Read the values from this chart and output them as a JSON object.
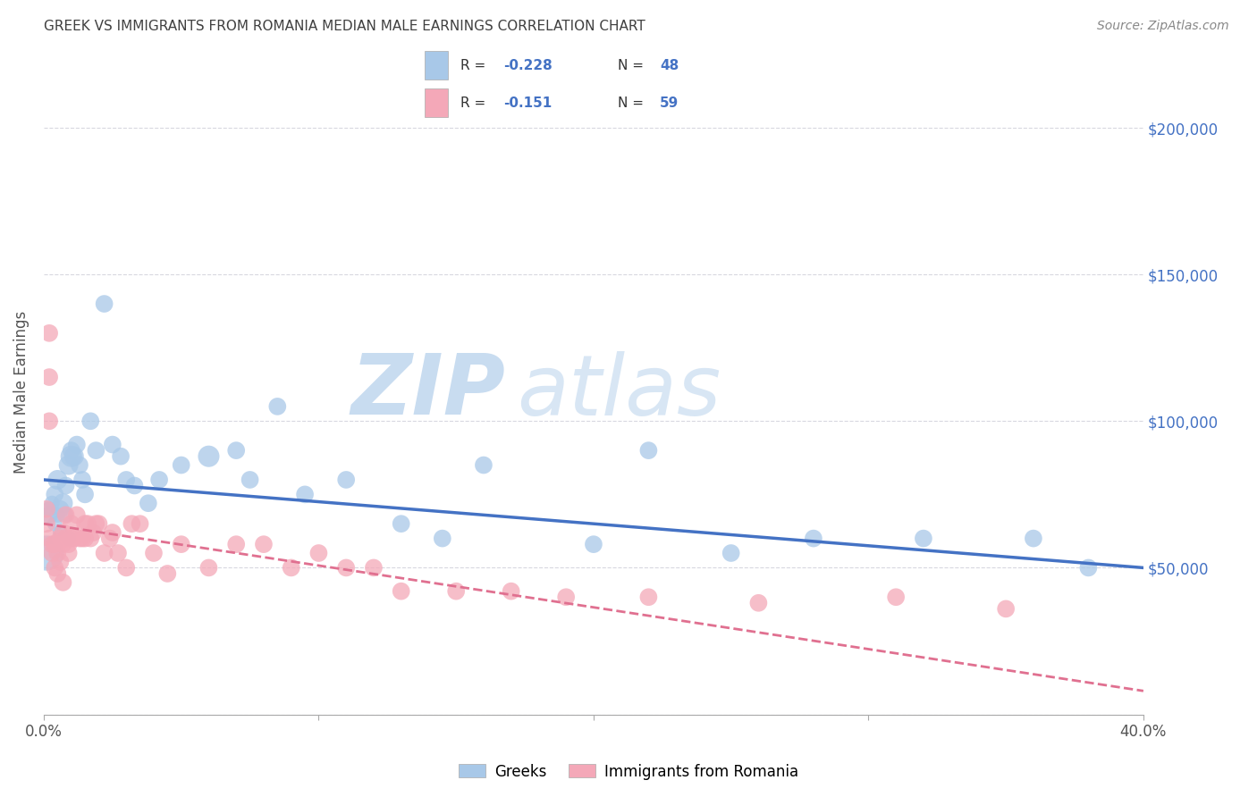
{
  "title": "GREEK VS IMMIGRANTS FROM ROMANIA MEDIAN MALE EARNINGS CORRELATION CHART",
  "source": "Source: ZipAtlas.com",
  "ylabel": "Median Male Earnings",
  "watermark_zip": "ZIP",
  "watermark_atlas": "atlas",
  "xlim": [
    0.0,
    0.4
  ],
  "ylim": [
    0,
    220000
  ],
  "yticks": [
    0,
    50000,
    100000,
    150000,
    200000
  ],
  "ytick_labels": [
    "",
    "$50,000",
    "$100,000",
    "$150,000",
    "$200,000"
  ],
  "xticks": [
    0.0,
    0.1,
    0.2,
    0.3,
    0.4
  ],
  "xtick_labels": [
    "0.0%",
    "",
    "",
    "",
    "40.0%"
  ],
  "legend_labels": [
    "Greeks",
    "Immigrants from Romania"
  ],
  "blue_color": "#A8C8E8",
  "pink_color": "#F4A8B8",
  "blue_line_color": "#4472C4",
  "pink_line_color": "#E07090",
  "background_color": "#FFFFFF",
  "grid_color": "#D8D8E0",
  "right_label_color": "#4472C4",
  "title_color": "#404040",
  "blue_scatter_x": [
    0.001,
    0.002,
    0.002,
    0.003,
    0.004,
    0.004,
    0.005,
    0.005,
    0.006,
    0.006,
    0.007,
    0.008,
    0.008,
    0.009,
    0.009,
    0.01,
    0.01,
    0.011,
    0.012,
    0.013,
    0.014,
    0.015,
    0.017,
    0.019,
    0.022,
    0.025,
    0.028,
    0.03,
    0.033,
    0.038,
    0.042,
    0.05,
    0.06,
    0.07,
    0.075,
    0.085,
    0.095,
    0.11,
    0.13,
    0.145,
    0.16,
    0.2,
    0.22,
    0.25,
    0.28,
    0.32,
    0.36,
    0.38
  ],
  "blue_scatter_y": [
    55000,
    70000,
    68000,
    72000,
    75000,
    65000,
    80000,
    68000,
    70000,
    62000,
    72000,
    78000,
    68000,
    85000,
    60000,
    88000,
    90000,
    88000,
    92000,
    85000,
    80000,
    75000,
    100000,
    90000,
    140000,
    92000,
    88000,
    80000,
    78000,
    72000,
    80000,
    85000,
    88000,
    90000,
    80000,
    105000,
    75000,
    80000,
    65000,
    60000,
    85000,
    58000,
    90000,
    55000,
    60000,
    60000,
    60000,
    50000
  ],
  "blue_scatter_size": [
    800,
    150,
    200,
    150,
    200,
    150,
    250,
    150,
    200,
    150,
    250,
    200,
    150,
    250,
    150,
    300,
    200,
    250,
    200,
    200,
    200,
    200,
    200,
    200,
    200,
    200,
    200,
    200,
    200,
    200,
    200,
    200,
    300,
    200,
    200,
    200,
    200,
    200,
    200,
    200,
    200,
    200,
    200,
    200,
    200,
    200,
    200,
    200
  ],
  "pink_scatter_x": [
    0.001,
    0.001,
    0.002,
    0.002,
    0.002,
    0.003,
    0.003,
    0.004,
    0.004,
    0.005,
    0.005,
    0.006,
    0.006,
    0.007,
    0.007,
    0.007,
    0.008,
    0.008,
    0.009,
    0.009,
    0.01,
    0.01,
    0.011,
    0.012,
    0.013,
    0.014,
    0.015,
    0.015,
    0.016,
    0.017,
    0.018,
    0.019,
    0.02,
    0.022,
    0.024,
    0.025,
    0.027,
    0.03,
    0.032,
    0.035,
    0.04,
    0.045,
    0.05,
    0.06,
    0.07,
    0.08,
    0.09,
    0.1,
    0.11,
    0.12,
    0.13,
    0.15,
    0.17,
    0.19,
    0.22,
    0.26,
    0.31,
    0.35,
    0.002
  ],
  "pink_scatter_y": [
    70000,
    65000,
    115000,
    100000,
    60000,
    58000,
    55000,
    58000,
    50000,
    55000,
    48000,
    52000,
    60000,
    62000,
    58000,
    45000,
    68000,
    60000,
    55000,
    58000,
    65000,
    60000,
    60000,
    68000,
    60000,
    60000,
    65000,
    60000,
    65000,
    60000,
    62000,
    65000,
    65000,
    55000,
    60000,
    62000,
    55000,
    50000,
    65000,
    65000,
    55000,
    48000,
    58000,
    50000,
    58000,
    58000,
    50000,
    55000,
    50000,
    50000,
    42000,
    42000,
    42000,
    40000,
    40000,
    38000,
    40000,
    36000,
    130000
  ],
  "pink_scatter_size": [
    200,
    200,
    200,
    200,
    200,
    200,
    200,
    200,
    200,
    200,
    200,
    200,
    200,
    200,
    200,
    200,
    200,
    200,
    200,
    200,
    200,
    200,
    200,
    200,
    200,
    200,
    200,
    200,
    200,
    200,
    200,
    200,
    200,
    200,
    200,
    200,
    200,
    200,
    200,
    200,
    200,
    200,
    200,
    200,
    200,
    200,
    200,
    200,
    200,
    200,
    200,
    200,
    200,
    200,
    200,
    200,
    200,
    200,
    200
  ],
  "blue_line_x0": 0.0,
  "blue_line_y0": 80000,
  "blue_line_x1": 0.4,
  "blue_line_y1": 50000,
  "pink_line_x0": 0.0,
  "pink_line_y0": 65000,
  "pink_line_x1": 0.4,
  "pink_line_y1": 8000
}
